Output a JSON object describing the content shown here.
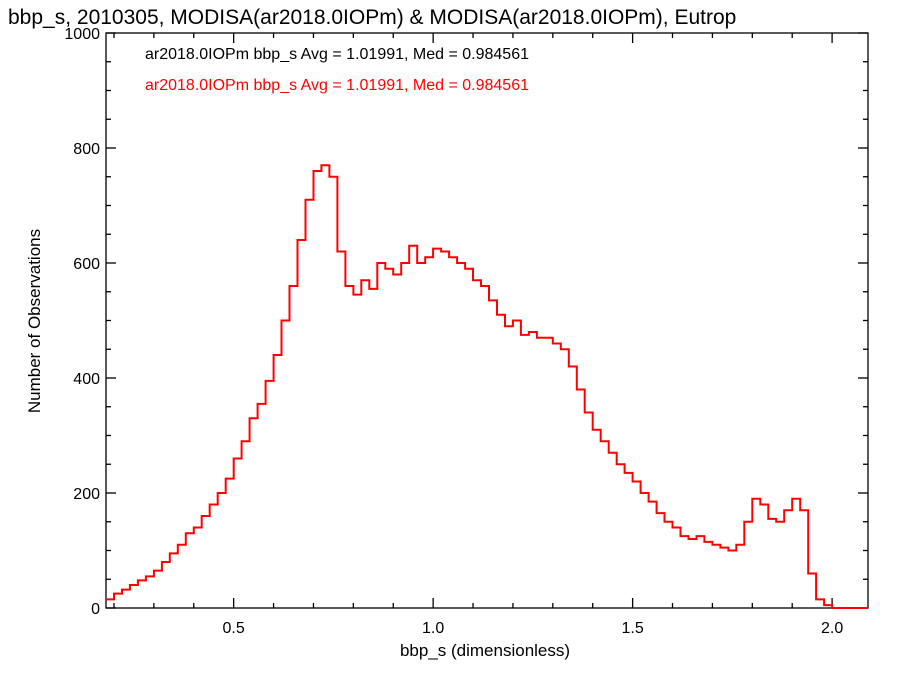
{
  "chart_data": {
    "type": "line",
    "title": "bbp_s, 2010305, MODISA(ar2018.0IOPm) & MODISA(ar2018.0IOPm), Eutrop",
    "xlabel": "bbp_s (dimensionless)",
    "ylabel": "Number of Observations",
    "xlim": [
      0.18,
      2.09
    ],
    "ylim": [
      0,
      1000
    ],
    "xticks": [
      0.5,
      1.0,
      1.5,
      2.0
    ],
    "xtick_labels": [
      "0.5",
      "1.0",
      "1.5",
      "2.0"
    ],
    "yticks": [
      0,
      200,
      400,
      600,
      800,
      1000
    ],
    "ytick_labels": [
      "0",
      "200",
      "400",
      "600",
      "800",
      "1000"
    ],
    "grid": false,
    "legend_placement": "top-left",
    "annotations": [
      {
        "text": "ar2018.0IOPm bbp_s Avg = 1.01991, Med = 0.984561",
        "color": "#000000"
      },
      {
        "text": "ar2018.0IOPm bbp_s Avg = 1.01991, Med = 0.984561",
        "color": "#ff0000"
      }
    ],
    "series": [
      {
        "color": "#ff0000",
        "step": true,
        "x": [
          0.18,
          0.2,
          0.22,
          0.24,
          0.26,
          0.28,
          0.3,
          0.32,
          0.34,
          0.36,
          0.38,
          0.4,
          0.42,
          0.44,
          0.46,
          0.48,
          0.5,
          0.52,
          0.54,
          0.56,
          0.58,
          0.6,
          0.62,
          0.64,
          0.66,
          0.68,
          0.7,
          0.72,
          0.74,
          0.76,
          0.78,
          0.8,
          0.82,
          0.84,
          0.86,
          0.88,
          0.9,
          0.92,
          0.94,
          0.96,
          0.98,
          1.0,
          1.02,
          1.04,
          1.06,
          1.08,
          1.1,
          1.12,
          1.14,
          1.16,
          1.18,
          1.2,
          1.22,
          1.24,
          1.26,
          1.28,
          1.3,
          1.32,
          1.34,
          1.36,
          1.38,
          1.4,
          1.42,
          1.44,
          1.46,
          1.48,
          1.5,
          1.52,
          1.54,
          1.56,
          1.58,
          1.6,
          1.62,
          1.64,
          1.66,
          1.68,
          1.7,
          1.72,
          1.74,
          1.76,
          1.78,
          1.8,
          1.82,
          1.84,
          1.86,
          1.88,
          1.9,
          1.92,
          1.94,
          1.96,
          1.98,
          2.0,
          2.02,
          2.04,
          2.06,
          2.08
        ],
        "y": [
          15,
          25,
          32,
          40,
          48,
          55,
          65,
          80,
          95,
          110,
          130,
          140,
          160,
          180,
          200,
          225,
          260,
          290,
          330,
          355,
          395,
          440,
          500,
          560,
          640,
          710,
          760,
          770,
          750,
          620,
          560,
          545,
          570,
          555,
          600,
          590,
          580,
          600,
          630,
          600,
          610,
          625,
          620,
          610,
          600,
          590,
          570,
          560,
          535,
          510,
          490,
          500,
          475,
          480,
          470,
          470,
          460,
          450,
          420,
          380,
          340,
          310,
          290,
          270,
          250,
          235,
          220,
          200,
          185,
          165,
          150,
          140,
          125,
          120,
          125,
          115,
          110,
          105,
          100,
          110,
          150,
          190,
          180,
          155,
          150,
          170,
          190,
          170,
          60,
          15,
          5,
          0,
          0,
          0,
          0,
          0
        ]
      }
    ]
  }
}
